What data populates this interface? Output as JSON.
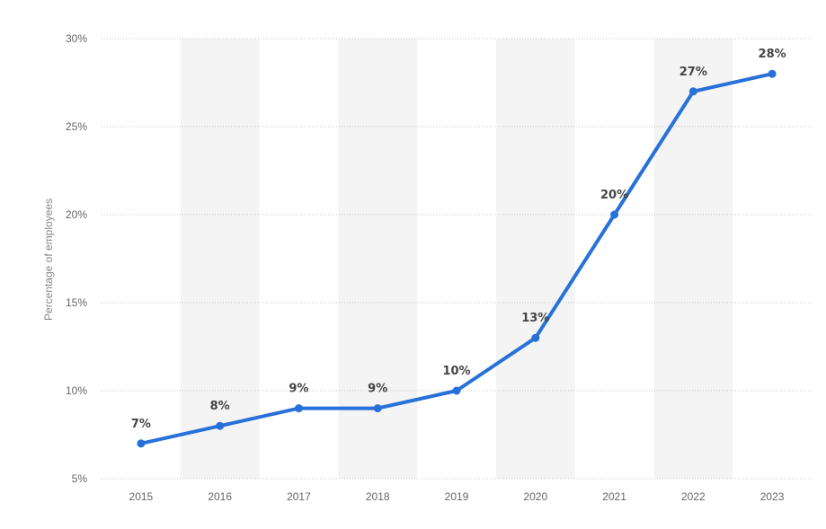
{
  "chart_data": {
    "type": "line",
    "title": "",
    "xlabel": "",
    "ylabel": "Percentage of employees",
    "categories": [
      "2015",
      "2016",
      "2017",
      "2018",
      "2019",
      "2020",
      "2021",
      "2022",
      "2023"
    ],
    "series": [
      {
        "values": [
          7,
          8,
          9,
          9,
          10,
          13,
          20,
          27,
          28
        ],
        "labels": [
          "7%",
          "8%",
          "9%",
          "9%",
          "10%",
          "13%",
          "20%",
          "27%",
          "28%"
        ],
        "color": "#2871d9"
      }
    ],
    "ylim": [
      5,
      30
    ],
    "yticks": [
      5,
      10,
      15,
      20,
      25,
      30
    ],
    "ytick_labels": [
      "5%",
      "10%",
      "15%",
      "20%",
      "25%",
      "30%"
    ],
    "grid": true,
    "alternating_bands_color": "#f4f4f4",
    "legend": "none"
  }
}
